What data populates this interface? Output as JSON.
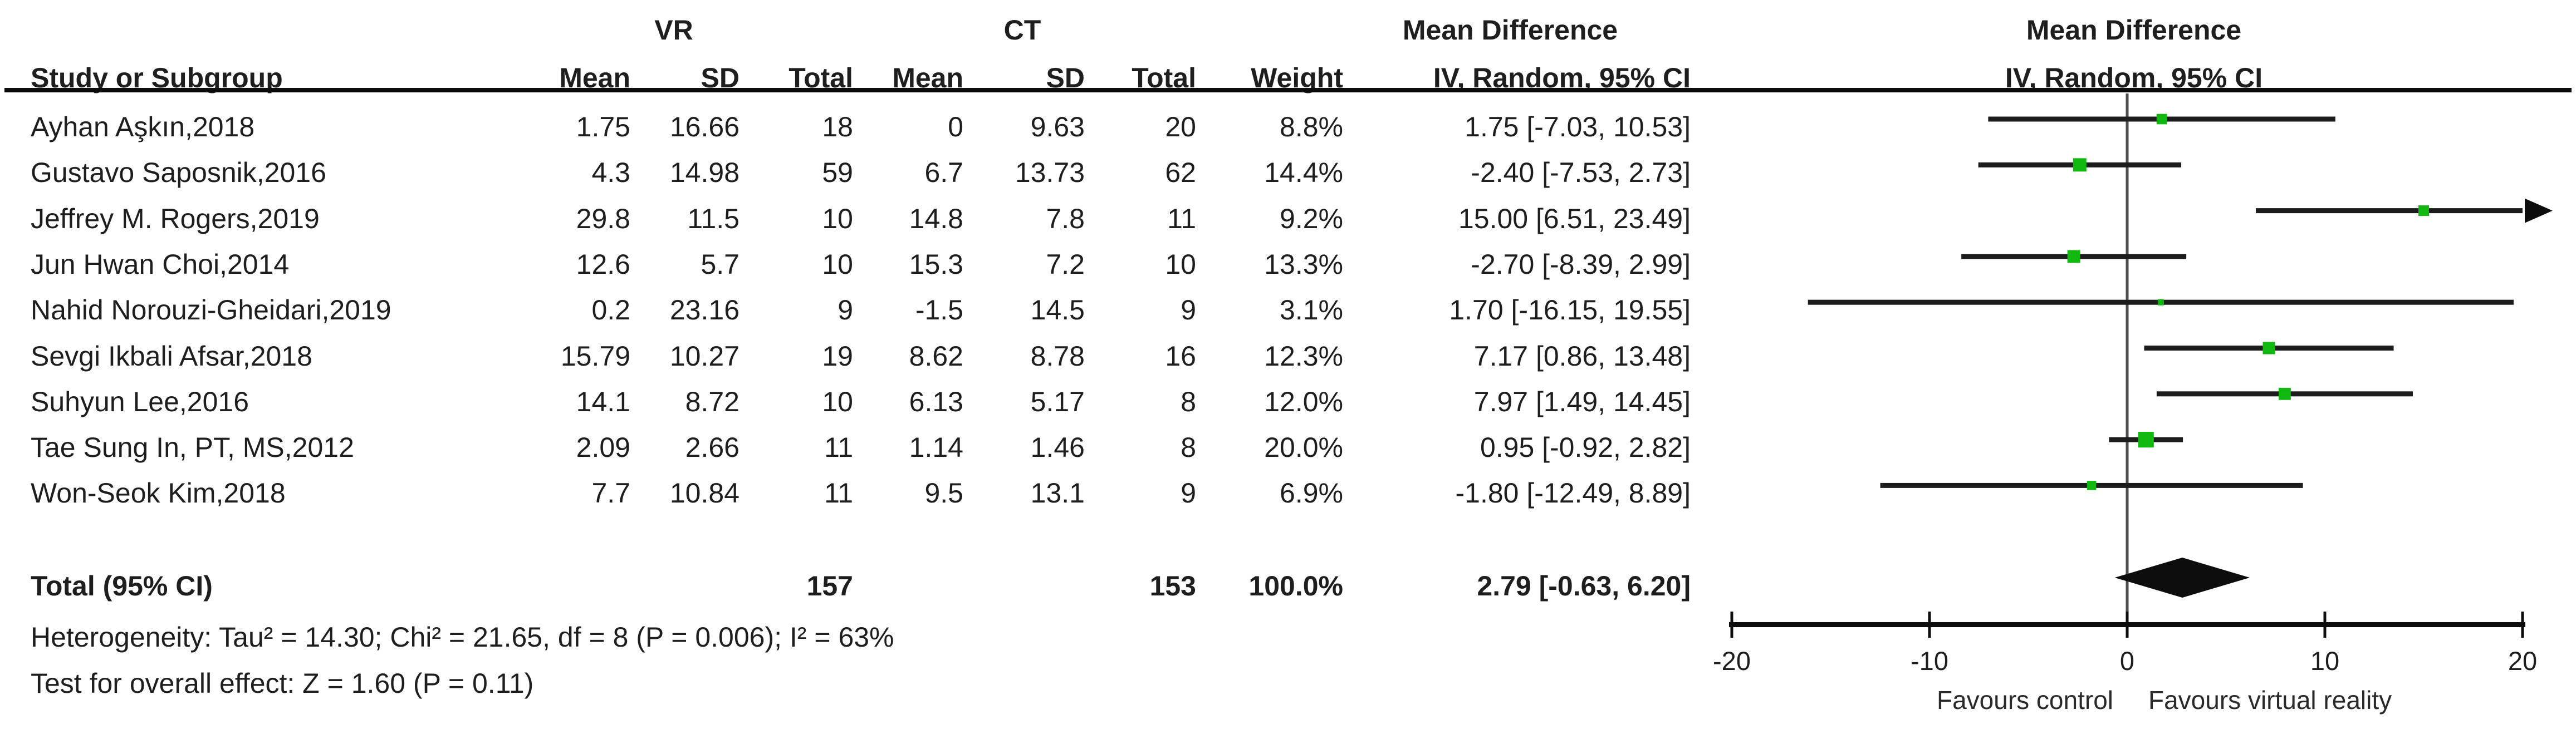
{
  "header": {
    "group1_label": "VR",
    "group2_label": "CT",
    "study_col": "Study or Subgroup",
    "mean_col": "Mean",
    "sd_col": "SD",
    "total_col": "Total",
    "weight_col": "Weight",
    "md_label": "Mean Difference",
    "ci_method_label": "IV, Random, 95% CI"
  },
  "table": {
    "rows": [
      {
        "study": "Ayhan Aşkın,2018",
        "vr_mean": "1.75",
        "vr_sd": "16.66",
        "vr_total": "18",
        "ct_mean": "0",
        "ct_sd": "9.63",
        "ct_total": "20",
        "weight": "8.8%",
        "ci_text": "1.75 [-7.03, 10.53]"
      },
      {
        "study": "Gustavo Saposnik,2016",
        "vr_mean": "4.3",
        "vr_sd": "14.98",
        "vr_total": "59",
        "ct_mean": "6.7",
        "ct_sd": "13.73",
        "ct_total": "62",
        "weight": "14.4%",
        "ci_text": "-2.40 [-7.53, 2.73]"
      },
      {
        "study": "Jeffrey M. Rogers,2019",
        "vr_mean": "29.8",
        "vr_sd": "11.5",
        "vr_total": "10",
        "ct_mean": "14.8",
        "ct_sd": "7.8",
        "ct_total": "11",
        "weight": "9.2%",
        "ci_text": "15.00 [6.51, 23.49]"
      },
      {
        "study": "Jun Hwan Choi,2014",
        "vr_mean": "12.6",
        "vr_sd": "5.7",
        "vr_total": "10",
        "ct_mean": "15.3",
        "ct_sd": "7.2",
        "ct_total": "10",
        "weight": "13.3%",
        "ci_text": "-2.70 [-8.39, 2.99]"
      },
      {
        "study": "Nahid Norouzi-Gheidari,2019",
        "vr_mean": "0.2",
        "vr_sd": "23.16",
        "vr_total": "9",
        "ct_mean": "-1.5",
        "ct_sd": "14.5",
        "ct_total": "9",
        "weight": "3.1%",
        "ci_text": "1.70 [-16.15, 19.55]"
      },
      {
        "study": "Sevgi Ikbali Afsar,2018",
        "vr_mean": "15.79",
        "vr_sd": "10.27",
        "vr_total": "19",
        "ct_mean": "8.62",
        "ct_sd": "8.78",
        "ct_total": "16",
        "weight": "12.3%",
        "ci_text": "7.17 [0.86, 13.48]"
      },
      {
        "study": "Suhyun Lee,2016",
        "vr_mean": "14.1",
        "vr_sd": "8.72",
        "vr_total": "10",
        "ct_mean": "6.13",
        "ct_sd": "5.17",
        "ct_total": "8",
        "weight": "12.0%",
        "ci_text": "7.97 [1.49, 14.45]"
      },
      {
        "study": "Tae Sung In, PT, MS,2012",
        "vr_mean": "2.09",
        "vr_sd": "2.66",
        "vr_total": "11",
        "ct_mean": "1.14",
        "ct_sd": "1.46",
        "ct_total": "8",
        "weight": "20.0%",
        "ci_text": "0.95 [-0.92, 2.82]"
      },
      {
        "study": "Won-Seok Kim,2018",
        "vr_mean": "7.7",
        "vr_sd": "10.84",
        "vr_total": "11",
        "ct_mean": "9.5",
        "ct_sd": "13.1",
        "ct_total": "9",
        "weight": "6.9%",
        "ci_text": "-1.80 [-12.49, 8.89]"
      }
    ]
  },
  "total": {
    "label": "Total (95% CI)",
    "vr_total": "157",
    "ct_total": "153",
    "weight": "100.0%",
    "ci_text": "2.79 [-0.63, 6.20]"
  },
  "footer": {
    "heterogeneity": "Heterogeneity: Tau² = 14.30; Chi² = 21.65, df = 8 (P = 0.006); I² = 63%",
    "overall_effect": "Test for overall effect: Z = 1.60 (P = 0.11)"
  },
  "axis": {
    "favours_left": "Favours control",
    "favours_right": "Favours virtual reality"
  },
  "chart_data": {
    "type": "forest",
    "effect_measure": "Mean Difference",
    "method": "IV, Random, 95% CI",
    "marker_color": "#10b810",
    "diamond_color": "#0d0d0d",
    "axis": {
      "min": -20,
      "max": 20,
      "ticks": [
        -20,
        -10,
        0,
        10,
        20
      ],
      "zero_line": 0
    },
    "studies": [
      {
        "name": "Ayhan Aşkın,2018",
        "md": 1.75,
        "ci_lower": -7.03,
        "ci_upper": 10.53,
        "weight_pct": 8.8
      },
      {
        "name": "Gustavo Saposnik,2016",
        "md": -2.4,
        "ci_lower": -7.53,
        "ci_upper": 2.73,
        "weight_pct": 14.4
      },
      {
        "name": "Jeffrey M. Rogers,2019",
        "md": 15.0,
        "ci_lower": 6.51,
        "ci_upper": 23.49,
        "weight_pct": 9.2
      },
      {
        "name": "Jun Hwan Choi,2014",
        "md": -2.7,
        "ci_lower": -8.39,
        "ci_upper": 2.99,
        "weight_pct": 13.3
      },
      {
        "name": "Nahid Norouzi-Gheidari,2019",
        "md": 1.7,
        "ci_lower": -16.15,
        "ci_upper": 19.55,
        "weight_pct": 3.1
      },
      {
        "name": "Sevgi Ikbali Afsar,2018",
        "md": 7.17,
        "ci_lower": 0.86,
        "ci_upper": 13.48,
        "weight_pct": 12.3
      },
      {
        "name": "Suhyun Lee,2016",
        "md": 7.97,
        "ci_lower": 1.49,
        "ci_upper": 14.45,
        "weight_pct": 12.0
      },
      {
        "name": "Tae Sung In, PT, MS,2012",
        "md": 0.95,
        "ci_lower": -0.92,
        "ci_upper": 2.82,
        "weight_pct": 20.0
      },
      {
        "name": "Won-Seok Kim,2018",
        "md": -1.8,
        "ci_lower": -12.49,
        "ci_upper": 8.89,
        "weight_pct": 6.9
      }
    ],
    "summary": {
      "label": "Total (95% CI)",
      "md": 2.79,
      "ci_lower": -0.63,
      "ci_upper": 6.2,
      "vr_total": 157,
      "ct_total": 153,
      "weight_pct": 100.0
    }
  }
}
